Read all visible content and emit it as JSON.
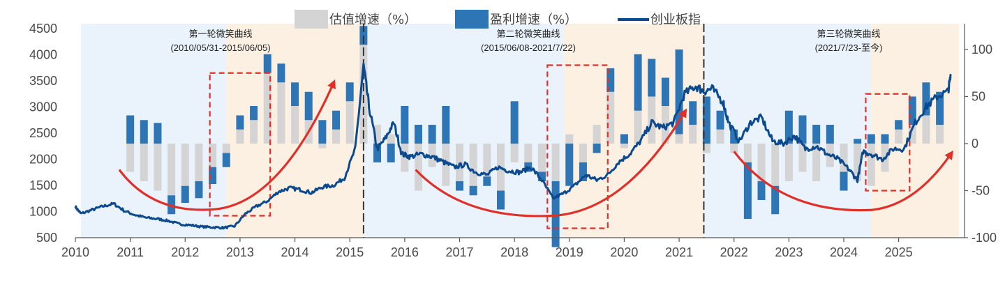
{
  "chart_data": {
    "type": "bar+line",
    "title": "",
    "x_axis": {
      "labels": [
        "2010",
        "2011",
        "2012",
        "2013",
        "2014",
        "2015",
        "2016",
        "2017",
        "2018",
        "2019",
        "2020",
        "2021",
        "2022",
        "2023",
        "2024",
        "2025"
      ]
    },
    "y_left": {
      "min": 500,
      "max": 4500,
      "ticks": [
        500,
        1000,
        1500,
        2000,
        2500,
        3000,
        3500,
        4000,
        4500
      ]
    },
    "y_right": {
      "min": -100,
      "max": 125,
      "ticks": [
        -100,
        -50,
        0,
        50,
        100
      ]
    },
    "legend": {
      "placement": "top",
      "valuation": {
        "label": "估值增速（%）",
        "color": "#d4d4d4"
      },
      "earnings": {
        "label": "盈利增速（%）",
        "color": "#2e75b6"
      },
      "index": {
        "label": "创业板指",
        "color": "#0b4a8f"
      }
    },
    "phases": [
      {
        "title": "第一轮微笑曲线",
        "range": "(2010/05/31-2015/06/05)",
        "start": 2010.1,
        "mid": 2012.75,
        "end": 2015.25,
        "fill_down": "#eaf3fb",
        "fill_up": "#fcf0e3"
      },
      {
        "title": "第二轮微笑曲线",
        "range": "(2015/06/08-2021/7/22)",
        "start": 2015.25,
        "mid": 2018.9,
        "end": 2021.45,
        "fill_down": "#eaf3fb",
        "fill_up": "#fcf0e3"
      },
      {
        "title": "第三轮微笑曲线",
        "range": "(2021/7/23-至今)",
        "start": 2021.45,
        "mid": 2024.5,
        "end": 2026.1,
        "fill_down": "#eaf3fb",
        "fill_up": "#fcf0e3"
      }
    ],
    "dividers": [
      2015.25,
      2021.45
    ],
    "quarters": [
      {
        "t": 2011.0,
        "val": -30,
        "earn": 30
      },
      {
        "t": 2011.25,
        "val": -40,
        "earn": 25
      },
      {
        "t": 2011.5,
        "val": -50,
        "earn": 22
      },
      {
        "t": 2011.75,
        "val": -55,
        "earn": -20
      },
      {
        "t": 2012.0,
        "val": -45,
        "earn": -18
      },
      {
        "t": 2012.25,
        "val": -40,
        "earn": -18
      },
      {
        "t": 2012.5,
        "val": -25,
        "earn": -18
      },
      {
        "t": 2012.75,
        "val": -10,
        "earn": -15
      },
      {
        "t": 2013.0,
        "val": 15,
        "earn": 15
      },
      {
        "t": 2013.25,
        "val": 25,
        "earn": 15
      },
      {
        "t": 2013.5,
        "val": 75,
        "earn": 20
      },
      {
        "t": 2013.75,
        "val": 65,
        "earn": 20
      },
      {
        "t": 2014.0,
        "val": 40,
        "earn": 25
      },
      {
        "t": 2014.25,
        "val": 25,
        "earn": 30
      },
      {
        "t": 2014.5,
        "val": -5,
        "earn": 25
      },
      {
        "t": 2014.75,
        "val": 15,
        "earn": 20
      },
      {
        "t": 2015.0,
        "val": 45,
        "earn": 20
      },
      {
        "t": 2015.25,
        "val": 105,
        "earn": 20
      },
      {
        "t": 2015.5,
        "val": 20,
        "earn": -20
      },
      {
        "t": 2015.75,
        "val": 10,
        "earn": -20
      },
      {
        "t": 2016.0,
        "val": -30,
        "earn": 40
      },
      {
        "t": 2016.25,
        "val": -50,
        "earn": 20
      },
      {
        "t": 2016.5,
        "val": -25,
        "earn": 20
      },
      {
        "t": 2016.75,
        "val": -45,
        "earn": 40
      },
      {
        "t": 2017.0,
        "val": -40,
        "earn": -10
      },
      {
        "t": 2017.25,
        "val": -45,
        "earn": -10
      },
      {
        "t": 2017.5,
        "val": -35,
        "earn": -10
      },
      {
        "t": 2017.75,
        "val": -50,
        "earn": -20
      },
      {
        "t": 2018.0,
        "val": -20,
        "earn": 45
      },
      {
        "t": 2018.25,
        "val": -20,
        "earn": -10
      },
      {
        "t": 2018.5,
        "val": -30,
        "earn": -10
      },
      {
        "t": 2018.75,
        "val": -40,
        "earn": -70
      },
      {
        "t": 2019.0,
        "val": 10,
        "earn": -45
      },
      {
        "t": 2019.25,
        "val": -20,
        "earn": -20
      },
      {
        "t": 2019.5,
        "val": 20,
        "earn": -10
      },
      {
        "t": 2019.75,
        "val": 55,
        "earn": 25
      },
      {
        "t": 2020.0,
        "val": -5,
        "earn": 10
      },
      {
        "t": 2020.25,
        "val": 35,
        "earn": 60
      },
      {
        "t": 2020.5,
        "val": 50,
        "earn": 40
      },
      {
        "t": 2020.75,
        "val": 40,
        "earn": 30
      },
      {
        "t": 2021.0,
        "val": 10,
        "earn": 90
      },
      {
        "t": 2021.25,
        "val": 20,
        "earn": 25
      },
      {
        "t": 2021.5,
        "val": -10,
        "earn": 50
      },
      {
        "t": 2021.75,
        "val": 15,
        "earn": 20
      },
      {
        "t": 2022.0,
        "val": -10,
        "earn": 15
      },
      {
        "t": 2022.25,
        "val": -20,
        "earn": -60
      },
      {
        "t": 2022.5,
        "val": -40,
        "earn": -20
      },
      {
        "t": 2022.75,
        "val": -45,
        "earn": -30
      },
      {
        "t": 2023.0,
        "val": -40,
        "earn": 35
      },
      {
        "t": 2023.25,
        "val": -30,
        "earn": 30
      },
      {
        "t": 2023.5,
        "val": -40,
        "earn": 20
      },
      {
        "t": 2023.75,
        "val": -25,
        "earn": 20
      },
      {
        "t": 2024.0,
        "val": -30,
        "earn": -20
      },
      {
        "t": 2024.25,
        "val": -40,
        "earn": 5
      },
      {
        "t": 2024.5,
        "val": -45,
        "earn": 10
      },
      {
        "t": 2024.75,
        "val": -30,
        "earn": 10
      },
      {
        "t": 2025.0,
        "val": 15,
        "earn": 10
      },
      {
        "t": 2025.25,
        "val": 20,
        "earn": 30
      },
      {
        "t": 2025.5,
        "val": 30,
        "earn": 35
      },
      {
        "t": 2025.75,
        "val": 20,
        "earn": 35
      }
    ],
    "index_line": [
      [
        2010.0,
        1090
      ],
      [
        2010.1,
        960
      ],
      [
        2010.3,
        1030
      ],
      [
        2010.5,
        1100
      ],
      [
        2010.7,
        1150
      ],
      [
        2010.9,
        1010
      ],
      [
        2011.1,
        930
      ],
      [
        2011.3,
        880
      ],
      [
        2011.5,
        860
      ],
      [
        2011.7,
        820
      ],
      [
        2011.9,
        760
      ],
      [
        2012.1,
        740
      ],
      [
        2012.3,
        710
      ],
      [
        2012.5,
        700
      ],
      [
        2012.7,
        690
      ],
      [
        2012.9,
        720
      ],
      [
        2013.1,
        960
      ],
      [
        2013.3,
        1100
      ],
      [
        2013.5,
        1200
      ],
      [
        2013.7,
        1380
      ],
      [
        2013.9,
        1450
      ],
      [
        2014.1,
        1420
      ],
      [
        2014.3,
        1360
      ],
      [
        2014.5,
        1470
      ],
      [
        2014.7,
        1500
      ],
      [
        2014.9,
        1640
      ],
      [
        2015.1,
        2200
      ],
      [
        2015.25,
        3800
      ],
      [
        2015.35,
        3000
      ],
      [
        2015.5,
        2200
      ],
      [
        2015.65,
        2400
      ],
      [
        2015.8,
        2700
      ],
      [
        2015.95,
        2100
      ],
      [
        2016.1,
        2050
      ],
      [
        2016.3,
        2100
      ],
      [
        2016.5,
        2050
      ],
      [
        2016.7,
        1950
      ],
      [
        2016.9,
        1850
      ],
      [
        2017.1,
        1900
      ],
      [
        2017.3,
        1750
      ],
      [
        2017.5,
        1700
      ],
      [
        2017.7,
        1850
      ],
      [
        2017.9,
        1780
      ],
      [
        2018.1,
        1750
      ],
      [
        2018.3,
        1850
      ],
      [
        2018.5,
        1600
      ],
      [
        2018.7,
        1250
      ],
      [
        2018.9,
        1350
      ],
      [
        2019.1,
        1500
      ],
      [
        2019.3,
        1700
      ],
      [
        2019.5,
        1600
      ],
      [
        2019.7,
        1700
      ],
      [
        2019.9,
        1950
      ],
      [
        2020.1,
        2100
      ],
      [
        2020.3,
        2350
      ],
      [
        2020.5,
        2700
      ],
      [
        2020.7,
        2600
      ],
      [
        2020.9,
        2700
      ],
      [
        2021.1,
        3250
      ],
      [
        2021.3,
        3400
      ],
      [
        2021.45,
        3300
      ],
      [
        2021.6,
        3350
      ],
      [
        2021.8,
        3100
      ],
      [
        2021.9,
        2700
      ],
      [
        2022.1,
        2350
      ],
      [
        2022.3,
        2700
      ],
      [
        2022.5,
        2800
      ],
      [
        2022.7,
        2350
      ],
      [
        2022.9,
        2300
      ],
      [
        2023.1,
        2450
      ],
      [
        2023.3,
        2200
      ],
      [
        2023.5,
        2250
      ],
      [
        2023.7,
        2100
      ],
      [
        2023.9,
        2000
      ],
      [
        2024.1,
        1800
      ],
      [
        2024.25,
        1600
      ],
      [
        2024.35,
        2150
      ],
      [
        2024.5,
        2100
      ],
      [
        2024.7,
        2000
      ],
      [
        2024.9,
        2200
      ],
      [
        2025.1,
        2200
      ],
      [
        2025.3,
        2700
      ],
      [
        2025.5,
        3000
      ],
      [
        2025.7,
        3200
      ],
      [
        2025.9,
        3300
      ],
      [
        2025.95,
        3600
      ]
    ],
    "smile_arcs": [
      {
        "from": [
          2010.8,
          1800
        ],
        "mid": [
          2012.5,
          1040
        ],
        "to": [
          2014.7,
          3450
        ]
      },
      {
        "from": [
          2016.2,
          1800
        ],
        "mid": [
          2018.7,
          920
        ],
        "to": [
          2021.1,
          2900
        ]
      },
      {
        "from": [
          2022.0,
          2150
        ],
        "mid": [
          2024.5,
          1030
        ],
        "to": [
          2025.95,
          2100
        ]
      }
    ],
    "highlight_boxes": [
      {
        "from": 2012.45,
        "to": 2013.55,
        "top": 3650,
        "bottom": 920
      },
      {
        "from": 2018.6,
        "to": 2019.7,
        "top": 3800,
        "bottom": 680
      },
      {
        "from": 2024.4,
        "to": 2025.2,
        "top": 3250,
        "bottom": 1400
      }
    ]
  }
}
